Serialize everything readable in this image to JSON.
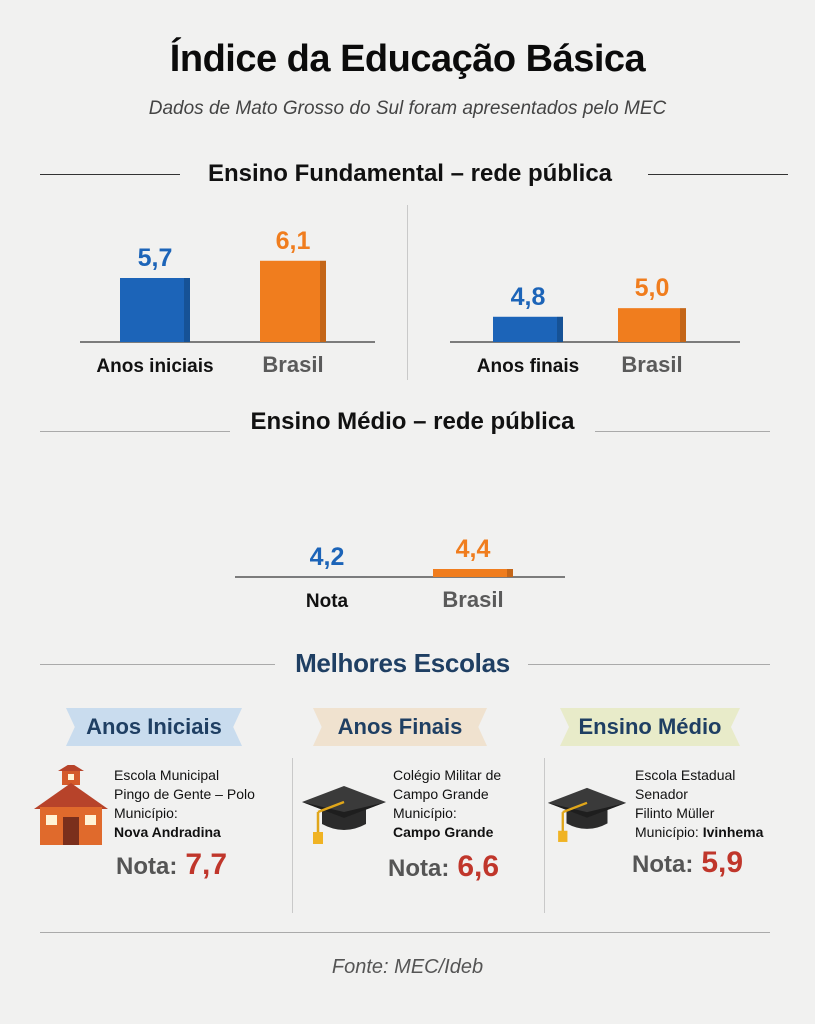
{
  "header": {
    "title": "Índice da Educação Básica",
    "subtitle": "Dados de Mato Grosso do Sul foram apresentados pelo MEC"
  },
  "colors": {
    "state": "#1c64b8",
    "brasil": "#f07d1e",
    "nota": "#c0362b",
    "heading_blue": "#1f3f63"
  },
  "fundamental": {
    "heading": "Ensino Fundamental – rede pública"
  },
  "medio": {
    "heading": "Ensino Médio – rede pública"
  },
  "chart_data": [
    {
      "type": "bar",
      "categories": [
        "Anos iniciais",
        "Brasil"
      ],
      "values": [
        5.7,
        6.1
      ],
      "labels": [
        "5,7",
        "6,1"
      ]
    },
    {
      "type": "bar",
      "categories": [
        "Anos finais",
        "Brasil"
      ],
      "values": [
        4.8,
        5.0
      ],
      "labels": [
        "4,8",
        "5,0"
      ]
    },
    {
      "type": "bar",
      "categories": [
        "Nota",
        "Brasil"
      ],
      "values": [
        4.2,
        4.4
      ],
      "labels": [
        "4,2",
        "4,4"
      ]
    }
  ],
  "best": {
    "heading": "Melhores Escolas",
    "nota_label": "Nota:",
    "schools": [
      {
        "ribbon": "Anos Iniciais",
        "icon": "school-building-icon",
        "lines": [
          "Escola Municipal",
          "Pingo de Gente – Polo",
          "Município:"
        ],
        "city": "Nova Andradina",
        "nota": "7,7"
      },
      {
        "ribbon": "Anos Finais",
        "icon": "graduation-cap-icon",
        "lines": [
          "Colégio Militar de",
          "Campo Grande",
          "Município:"
        ],
        "city": "Campo Grande",
        "nota": "6,6"
      },
      {
        "ribbon": "Ensino Médio",
        "icon": "graduation-cap-icon",
        "lines": [
          "Escola Estadual",
          "Senador",
          "Filinto Müller",
          "Município: "
        ],
        "city": "Ivinhema",
        "nota": "5,9"
      }
    ]
  },
  "footer": {
    "source": "Fonte: MEC/Ideb"
  }
}
